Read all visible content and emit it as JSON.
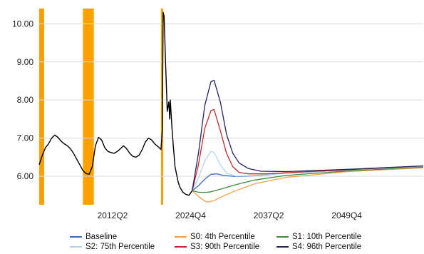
{
  "chart_data": {
    "type": "line",
    "title": "",
    "xlabel": "",
    "ylabel": "",
    "ylim": [
      5.25,
      10.4
    ],
    "x_range": [
      2000.5,
      2062.0
    ],
    "x_ticks": [
      {
        "label": "2012Q2",
        "value": 2012.25
      },
      {
        "label": "2024Q4",
        "value": 2024.75
      },
      {
        "label": "2037Q2",
        "value": 2037.25
      },
      {
        "label": "2049Q4",
        "value": 2049.75
      }
    ],
    "y_ticks": [
      {
        "label": "6.00",
        "value": 6.0
      },
      {
        "label": "7.00",
        "value": 7.0
      },
      {
        "label": "8.00",
        "value": 8.0
      },
      {
        "label": "9.00",
        "value": 9.0
      },
      {
        "label": "10.00",
        "value": 10.0
      }
    ],
    "grid": "horizontal",
    "shaded_periods": [
      {
        "start": 2000.5,
        "end": 2001.3,
        "color": "#ffa000"
      },
      {
        "start": 2007.5,
        "end": 2009.25,
        "color": "#ffa000"
      },
      {
        "start": 2020.0,
        "end": 2020.35,
        "color": "#ffa000"
      }
    ],
    "history": {
      "color": "#000000",
      "points": [
        [
          2000.5,
          6.3
        ],
        [
          2001.0,
          6.55
        ],
        [
          2001.5,
          6.75
        ],
        [
          2002.0,
          6.85
        ],
        [
          2002.5,
          7.0
        ],
        [
          2003.0,
          7.08
        ],
        [
          2003.5,
          7.02
        ],
        [
          2004.0,
          6.92
        ],
        [
          2004.5,
          6.85
        ],
        [
          2005.0,
          6.8
        ],
        [
          2005.5,
          6.72
        ],
        [
          2006.0,
          6.6
        ],
        [
          2006.5,
          6.45
        ],
        [
          2007.0,
          6.3
        ],
        [
          2007.5,
          6.15
        ],
        [
          2008.0,
          6.07
        ],
        [
          2008.5,
          6.05
        ],
        [
          2009.0,
          6.25
        ],
        [
          2009.5,
          6.8
        ],
        [
          2010.0,
          7.02
        ],
        [
          2010.5,
          6.95
        ],
        [
          2011.0,
          6.75
        ],
        [
          2011.5,
          6.65
        ],
        [
          2012.0,
          6.62
        ],
        [
          2012.5,
          6.6
        ],
        [
          2013.0,
          6.65
        ],
        [
          2013.5,
          6.72
        ],
        [
          2014.0,
          6.8
        ],
        [
          2014.5,
          6.72
        ],
        [
          2015.0,
          6.6
        ],
        [
          2015.5,
          6.52
        ],
        [
          2016.0,
          6.5
        ],
        [
          2016.5,
          6.55
        ],
        [
          2017.0,
          6.7
        ],
        [
          2017.5,
          6.9
        ],
        [
          2018.0,
          7.0
        ],
        [
          2018.5,
          6.95
        ],
        [
          2019.0,
          6.85
        ],
        [
          2019.5,
          6.78
        ],
        [
          2020.0,
          6.7
        ],
        [
          2020.2,
          7.2
        ],
        [
          2020.35,
          10.3
        ],
        [
          2020.5,
          10.2
        ],
        [
          2020.75,
          8.9
        ],
        [
          2021.0,
          7.7
        ],
        [
          2021.25,
          7.95
        ],
        [
          2021.4,
          7.5
        ],
        [
          2021.5,
          8.0
        ],
        [
          2021.75,
          7.3
        ],
        [
          2022.0,
          6.75
        ],
        [
          2022.25,
          6.25
        ],
        [
          2022.5,
          6.05
        ],
        [
          2022.75,
          5.85
        ],
        [
          2023.0,
          5.72
        ],
        [
          2023.25,
          5.65
        ],
        [
          2023.5,
          5.58
        ],
        [
          2023.75,
          5.55
        ],
        [
          2024.0,
          5.52
        ],
        [
          2024.5,
          5.5
        ],
        [
          2025.0,
          5.62
        ]
      ]
    },
    "series": [
      {
        "name": "Baseline",
        "color": "#3a6bb0",
        "points": [
          [
            2025.0,
            5.62
          ],
          [
            2026.0,
            5.75
          ],
          [
            2027.0,
            5.92
          ],
          [
            2028.0,
            6.05
          ],
          [
            2029.0,
            6.06
          ],
          [
            2030.0,
            6.02
          ],
          [
            2032.0,
            5.99
          ],
          [
            2035.0,
            6.01
          ],
          [
            2040.0,
            6.08
          ],
          [
            2050.0,
            6.16
          ],
          [
            2062.0,
            6.26
          ]
        ]
      },
      {
        "name": "S0: 4th Percentile",
        "color": "#f0a046",
        "points": [
          [
            2025.0,
            5.62
          ],
          [
            2026.0,
            5.47
          ],
          [
            2027.0,
            5.35
          ],
          [
            2027.5,
            5.32
          ],
          [
            2028.5,
            5.36
          ],
          [
            2030.0,
            5.48
          ],
          [
            2032.0,
            5.62
          ],
          [
            2035.0,
            5.8
          ],
          [
            2040.0,
            5.97
          ],
          [
            2050.0,
            6.12
          ],
          [
            2062.0,
            6.22
          ]
        ]
      },
      {
        "name": "S1: 10th Percentile",
        "color": "#3e8a3e",
        "points": [
          [
            2025.0,
            5.62
          ],
          [
            2026.0,
            5.58
          ],
          [
            2027.0,
            5.57
          ],
          [
            2028.0,
            5.59
          ],
          [
            2030.0,
            5.68
          ],
          [
            2032.0,
            5.78
          ],
          [
            2035.0,
            5.9
          ],
          [
            2040.0,
            6.02
          ],
          [
            2050.0,
            6.14
          ],
          [
            2062.0,
            6.24
          ]
        ]
      },
      {
        "name": "S2: 75th Percentile",
        "color": "#b7d3ec",
        "points": [
          [
            2025.0,
            5.62
          ],
          [
            2026.0,
            5.95
          ],
          [
            2027.0,
            6.4
          ],
          [
            2028.0,
            6.65
          ],
          [
            2028.5,
            6.62
          ],
          [
            2029.5,
            6.3
          ],
          [
            2030.5,
            6.08
          ],
          [
            2032.0,
            6.0
          ],
          [
            2035.0,
            6.02
          ],
          [
            2040.0,
            6.08
          ],
          [
            2050.0,
            6.16
          ],
          [
            2062.0,
            6.26
          ]
        ]
      },
      {
        "name": "S3: 90th Percentile",
        "color": "#c0282b",
        "points": [
          [
            2025.0,
            5.62
          ],
          [
            2026.0,
            6.3
          ],
          [
            2027.0,
            7.25
          ],
          [
            2028.0,
            7.72
          ],
          [
            2028.5,
            7.75
          ],
          [
            2029.5,
            7.2
          ],
          [
            2030.5,
            6.6
          ],
          [
            2031.5,
            6.25
          ],
          [
            2032.5,
            6.1
          ],
          [
            2034.0,
            6.06
          ],
          [
            2037.0,
            6.06
          ],
          [
            2040.0,
            6.09
          ],
          [
            2050.0,
            6.17
          ],
          [
            2062.0,
            6.27
          ]
        ]
      },
      {
        "name": "S4: 96th Percentile",
        "color": "#23235e",
        "points": [
          [
            2025.0,
            5.62
          ],
          [
            2026.0,
            6.6
          ],
          [
            2027.0,
            7.85
          ],
          [
            2028.0,
            8.48
          ],
          [
            2028.5,
            8.52
          ],
          [
            2029.5,
            7.95
          ],
          [
            2030.5,
            7.1
          ],
          [
            2031.5,
            6.6
          ],
          [
            2032.5,
            6.35
          ],
          [
            2034.0,
            6.2
          ],
          [
            2036.0,
            6.13
          ],
          [
            2040.0,
            6.12
          ],
          [
            2050.0,
            6.18
          ],
          [
            2062.0,
            6.27
          ]
        ]
      }
    ],
    "legend_position": "bottom"
  }
}
